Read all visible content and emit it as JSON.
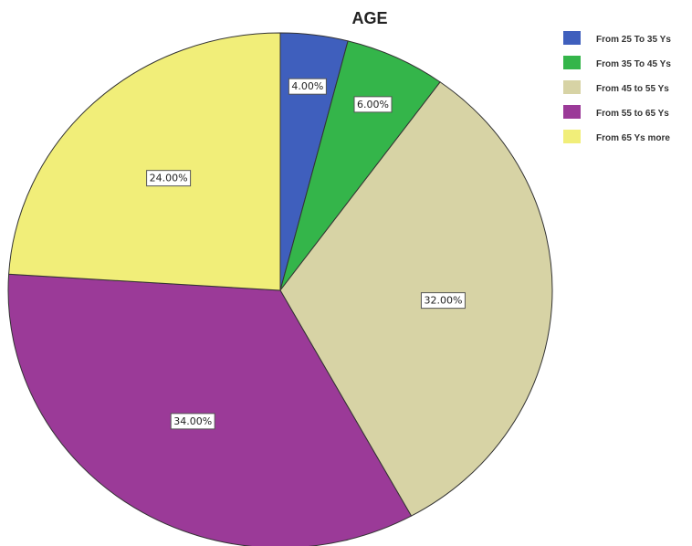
{
  "chart_data": {
    "type": "pie",
    "title": "AGE",
    "categories": [
      "From 25 To 35 Ys",
      "From 35 To 45 Ys",
      "From 45 to 55 Ys",
      "From 55 to 65 Ys",
      "From 65 Ys more"
    ],
    "values": [
      4.0,
      6.0,
      32.0,
      34.0,
      24.0
    ],
    "labels": [
      "4.00%",
      "6.00%",
      "32.00%",
      "34.00%",
      "24.00%"
    ],
    "colors": [
      "#3f5fbd",
      "#34b54a",
      "#d7d3a5",
      "#9b3a98",
      "#f1ee79"
    ],
    "legend_position": "top-right",
    "start": "12 o'clock",
    "direction": "clockwise"
  }
}
